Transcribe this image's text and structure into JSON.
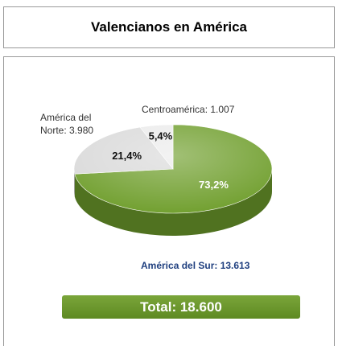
{
  "chart_data": {
    "type": "pie",
    "title": "Valencianos en América",
    "categories": [
      "América del Sur: 13.613",
      "América del Norte: 3.980",
      "Centroamérica: 1.007"
    ],
    "values": [
      73.2,
      21.4,
      5.4
    ],
    "value_labels": [
      "73,2%",
      "21,4%",
      "5,4%"
    ],
    "colors": [
      "#6f9e2c",
      "#d9d9d9",
      "#ebebeb"
    ],
    "total": "Total: 18.600"
  }
}
